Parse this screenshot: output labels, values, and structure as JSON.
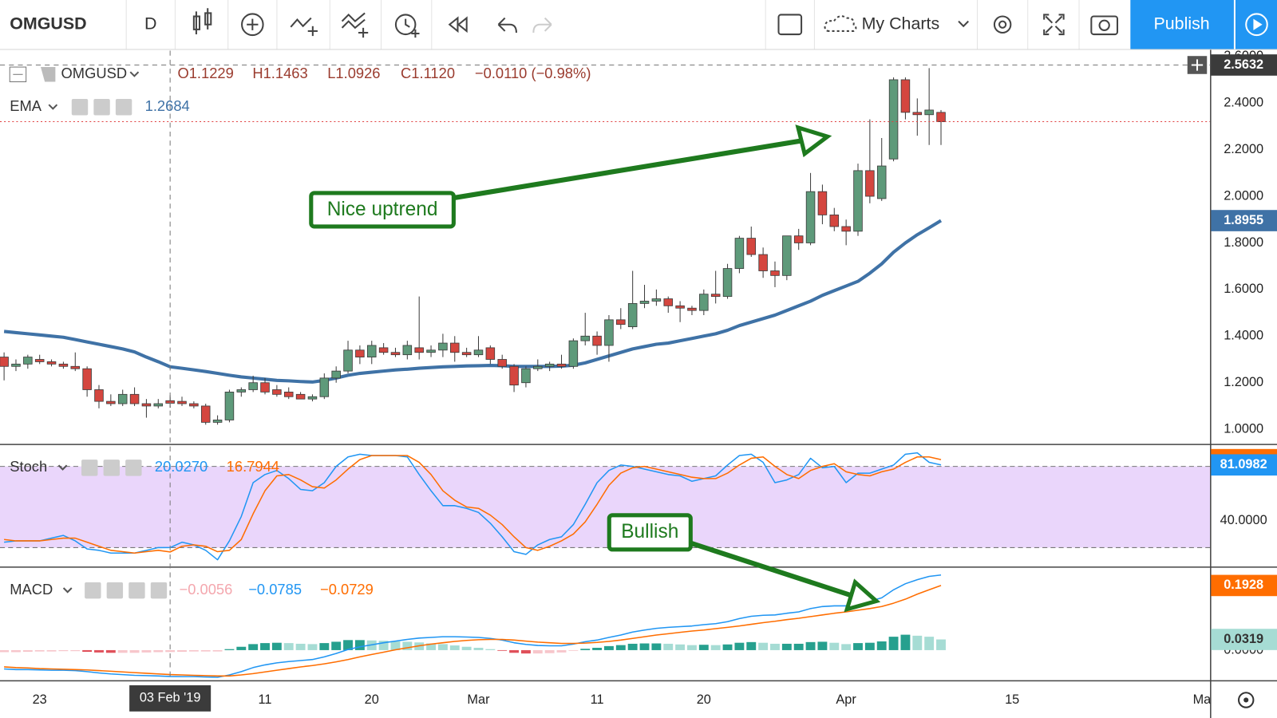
{
  "toolbar": {
    "symbol": "OMGUSD",
    "interval": "D",
    "layouts": "My Charts",
    "publish": "Publish"
  },
  "chart_data": [
    {
      "type": "candlestick",
      "symbol": "OMGUSD",
      "legend": [
        "O1.1229",
        "H1.1463",
        "L1.0926",
        "C1.1120",
        "−0.0110 (−0.98%)"
      ],
      "up_color": "#5e9a7a",
      "down_color": "#d4463f",
      "open": [
        1.31,
        1.27,
        1.28,
        1.3,
        1.29,
        1.28,
        1.27,
        1.26,
        1.17,
        1.12,
        1.11,
        1.15,
        1.11,
        1.1,
        1.1229,
        1.12,
        1.11,
        1.1,
        1.03,
        1.04,
        1.16,
        1.17,
        1.2,
        1.17,
        1.16,
        1.15,
        1.13,
        1.14,
        1.22,
        1.25,
        1.34,
        1.31,
        1.35,
        1.33,
        1.32,
        1.35,
        1.33,
        1.34,
        1.37,
        1.33,
        1.32,
        1.35,
        1.3,
        1.27,
        1.2,
        1.26,
        1.27,
        1.28,
        1.27,
        1.38,
        1.4,
        1.36,
        1.47,
        1.44,
        1.54,
        1.55,
        1.56,
        1.53,
        1.52,
        1.51,
        1.58,
        1.57,
        1.69,
        1.82,
        1.75,
        1.68,
        1.66,
        1.83,
        1.8,
        2.02,
        1.92,
        1.87,
        1.85,
        2.11,
        1.99,
        2.16,
        2.5,
        2.36,
        2.35,
        2.36
      ],
      "high": [
        1.33,
        1.3,
        1.32,
        1.32,
        1.3,
        1.29,
        1.33,
        1.27,
        1.19,
        1.15,
        1.17,
        1.18,
        1.13,
        1.13,
        1.1463,
        1.14,
        1.12,
        1.11,
        1.06,
        1.17,
        1.18,
        1.23,
        1.22,
        1.19,
        1.18,
        1.16,
        1.15,
        1.24,
        1.27,
        1.38,
        1.36,
        1.38,
        1.37,
        1.35,
        1.38,
        1.57,
        1.36,
        1.41,
        1.4,
        1.35,
        1.4,
        1.36,
        1.32,
        1.28,
        1.27,
        1.3,
        1.29,
        1.32,
        1.39,
        1.5,
        1.42,
        1.49,
        1.52,
        1.68,
        1.62,
        1.6,
        1.57,
        1.55,
        1.53,
        1.6,
        1.68,
        1.71,
        1.83,
        1.87,
        1.78,
        1.72,
        1.83,
        1.86,
        2.1,
        2.05,
        1.95,
        1.9,
        2.14,
        2.33,
        2.25,
        2.51,
        2.51,
        2.42,
        2.55,
        2.37
      ],
      "low": [
        1.21,
        1.25,
        1.26,
        1.28,
        1.27,
        1.26,
        1.25,
        1.14,
        1.09,
        1.1,
        1.1,
        1.1,
        1.05,
        1.09,
        1.0926,
        1.1,
        1.09,
        1.02,
        1.02,
        1.03,
        1.14,
        1.16,
        1.15,
        1.14,
        1.13,
        1.13,
        1.12,
        1.13,
        1.2,
        1.24,
        1.28,
        1.28,
        1.32,
        1.31,
        1.3,
        1.3,
        1.31,
        1.31,
        1.29,
        1.31,
        1.31,
        1.28,
        1.26,
        1.16,
        1.18,
        1.25,
        1.25,
        1.26,
        1.26,
        1.36,
        1.32,
        1.29,
        1.43,
        1.43,
        1.52,
        1.53,
        1.5,
        1.46,
        1.49,
        1.49,
        1.54,
        1.56,
        1.67,
        1.74,
        1.65,
        1.61,
        1.64,
        1.77,
        1.79,
        1.88,
        1.85,
        1.79,
        1.83,
        1.97,
        1.98,
        2.15,
        2.33,
        2.26,
        2.22,
        2.22
      ],
      "close": [
        1.27,
        1.28,
        1.31,
        1.29,
        1.28,
        1.27,
        1.26,
        1.17,
        1.12,
        1.11,
        1.15,
        1.11,
        1.1,
        1.11,
        1.112,
        1.11,
        1.1,
        1.03,
        1.04,
        1.16,
        1.17,
        1.2,
        1.16,
        1.15,
        1.14,
        1.13,
        1.14,
        1.22,
        1.25,
        1.34,
        1.31,
        1.36,
        1.33,
        1.32,
        1.36,
        1.33,
        1.34,
        1.37,
        1.33,
        1.32,
        1.34,
        1.3,
        1.27,
        1.19,
        1.26,
        1.27,
        1.28,
        1.27,
        1.38,
        1.4,
        1.36,
        1.47,
        1.45,
        1.54,
        1.55,
        1.56,
        1.53,
        1.52,
        1.51,
        1.58,
        1.57,
        1.69,
        1.82,
        1.75,
        1.68,
        1.66,
        1.83,
        1.8,
        2.02,
        1.92,
        1.87,
        1.85,
        2.11,
        2.0,
        2.13,
        2.5,
        2.36,
        2.35,
        2.37,
        2.32
      ],
      "series": [
        {
          "type": "line",
          "name": "EMA",
          "legend_value": "1.2684",
          "color": "#3f72a6",
          "width": 4,
          "values": [
            1.42,
            1.415,
            1.41,
            1.405,
            1.4,
            1.395,
            1.385,
            1.375,
            1.365,
            1.355,
            1.345,
            1.332,
            1.31,
            1.29,
            1.2684,
            1.262,
            1.255,
            1.248,
            1.24,
            1.232,
            1.225,
            1.22,
            1.215,
            1.21,
            1.208,
            1.205,
            1.203,
            1.21,
            1.22,
            1.232,
            1.24,
            1.245,
            1.25,
            1.255,
            1.258,
            1.262,
            1.265,
            1.268,
            1.27,
            1.272,
            1.273,
            1.274,
            1.273,
            1.27,
            1.27,
            1.27,
            1.27,
            1.271,
            1.275,
            1.285,
            1.3,
            1.315,
            1.33,
            1.345,
            1.355,
            1.365,
            1.37,
            1.38,
            1.39,
            1.4,
            1.41,
            1.425,
            1.445,
            1.46,
            1.475,
            1.49,
            1.51,
            1.53,
            1.55,
            1.575,
            1.595,
            1.615,
            1.635,
            1.67,
            1.71,
            1.76,
            1.8,
            1.835,
            1.865,
            1.8955
          ]
        }
      ],
      "ylim": [
        0.9368,
        2.6246
      ],
      "yticks": [
        {
          "value": 1,
          "label": "1.0000"
        },
        {
          "value": 1.2,
          "label": "1.2000"
        },
        {
          "value": 1.4,
          "label": "1.4000"
        },
        {
          "value": 1.6,
          "label": "1.6000"
        },
        {
          "value": 1.8,
          "label": "1.8000"
        },
        {
          "value": 2,
          "label": "2.0000"
        },
        {
          "value": 2.2,
          "label": "2.2000"
        },
        {
          "value": 2.4,
          "label": "2.4000"
        },
        {
          "value": 2.6,
          "label": "2.6000"
        }
      ],
      "crosshair_price": 2.5632,
      "annotations": [
        "Nice uptrend",
        "Bullish"
      ]
    },
    {
      "type": "line",
      "name": "Stoch",
      "bands": [
        20,
        80
      ],
      "band_color": "#ead6fb",
      "series": [
        {
          "type": "line",
          "legend_value": "20.0270",
          "color": "#2196f3",
          "width": 1.5,
          "values": [
            24,
            25,
            25,
            25,
            27,
            29,
            25,
            19,
            18,
            16,
            16,
            16,
            18,
            20,
            20.027,
            24,
            22,
            18,
            11,
            25,
            43,
            68,
            74,
            77,
            71,
            63,
            62,
            68,
            80,
            87,
            89,
            88,
            88,
            88,
            87,
            74,
            62,
            51,
            51,
            49,
            46,
            38,
            28,
            17,
            15,
            22,
            26,
            28,
            37,
            52,
            68,
            77,
            81,
            80,
            78,
            76,
            74,
            73,
            69,
            71,
            73,
            81,
            88,
            89,
            83,
            68,
            70,
            74,
            86,
            79,
            80,
            68,
            75,
            75,
            78,
            81,
            89,
            90,
            83,
            81.0982
          ]
        },
        {
          "type": "line",
          "legend_value": "16.7944",
          "color": "#ff6d00",
          "width": 1.5,
          "values": [
            26,
            25,
            25,
            25,
            26,
            27,
            27,
            24,
            21,
            18,
            17,
            16,
            17,
            18,
            16.7944,
            21,
            22,
            21,
            17,
            18,
            26,
            45,
            62,
            73,
            74,
            70,
            65,
            64,
            70,
            78,
            85,
            88,
            88,
            88,
            88,
            83,
            74,
            62,
            55,
            50,
            49,
            44,
            37,
            28,
            20,
            18,
            21,
            25,
            30,
            39,
            52,
            66,
            75,
            79,
            80,
            78,
            76,
            74,
            72,
            71,
            71,
            75,
            81,
            86,
            87,
            80,
            74,
            71,
            77,
            80,
            82,
            76,
            74,
            73,
            76,
            78,
            83,
            87,
            87,
            85
          ]
        }
      ],
      "ylim": [
        6.5,
        95.3
      ],
      "yticks": [
        {
          "value": 40,
          "label": "40.0000"
        }
      ]
    },
    {
      "type": "combo",
      "name": "MACD",
      "series": [
        {
          "type": "histogram",
          "legend_value": "−0.0056",
          "legend_color": "#f4a7ae",
          "colors": [
            "#26a08e",
            "#a6dcd4",
            "#e0505a",
            "#f7c6cb"
          ],
          "values": [
            -0.006,
            -0.006,
            -0.005,
            -0.004,
            -0.004,
            -0.003,
            -0.003,
            -0.005,
            -0.007,
            -0.008,
            -0.008,
            -0.008,
            -0.007,
            -0.006,
            -0.0056,
            -0.005,
            -0.004,
            -0.004,
            -0.004,
            0.003,
            0.01,
            0.018,
            0.021,
            0.022,
            0.021,
            0.019,
            0.018,
            0.021,
            0.025,
            0.03,
            0.03,
            0.029,
            0.028,
            0.026,
            0.025,
            0.023,
            0.02,
            0.018,
            0.014,
            0.01,
            0.007,
            0.003,
            -0.002,
            -0.008,
            -0.01,
            -0.01,
            -0.009,
            -0.007,
            -0.002,
            0.004,
            0.007,
            0.012,
            0.015,
            0.019,
            0.02,
            0.02,
            0.019,
            0.017,
            0.015,
            0.016,
            0.015,
            0.017,
            0.022,
            0.024,
            0.022,
            0.019,
            0.019,
            0.019,
            0.024,
            0.025,
            0.022,
            0.018,
            0.021,
            0.022,
            0.026,
            0.04,
            0.046,
            0.043,
            0.04,
            0.0319
          ]
        },
        {
          "type": "line",
          "legend_value": "−0.0785",
          "color": "#2196f3",
          "width": 1.5,
          "values": [
            -0.056,
            -0.058,
            -0.058,
            -0.059,
            -0.06,
            -0.06,
            -0.061,
            -0.064,
            -0.068,
            -0.071,
            -0.073,
            -0.075,
            -0.076,
            -0.077,
            -0.0785,
            -0.079,
            -0.079,
            -0.08,
            -0.081,
            -0.074,
            -0.064,
            -0.052,
            -0.044,
            -0.038,
            -0.034,
            -0.031,
            -0.028,
            -0.02,
            -0.01,
            0.002,
            0.01,
            0.016,
            0.022,
            0.027,
            0.032,
            0.036,
            0.038,
            0.04,
            0.04,
            0.039,
            0.038,
            0.035,
            0.03,
            0.022,
            0.017,
            0.014,
            0.013,
            0.013,
            0.018,
            0.025,
            0.03,
            0.038,
            0.045,
            0.054,
            0.06,
            0.065,
            0.068,
            0.07,
            0.072,
            0.076,
            0.079,
            0.085,
            0.094,
            0.101,
            0.104,
            0.105,
            0.11,
            0.114,
            0.124,
            0.13,
            0.132,
            0.132,
            0.14,
            0.146,
            0.156,
            0.18,
            0.198,
            0.21,
            0.22,
            0.224
          ]
        },
        {
          "type": "line",
          "legend_value": "−0.0729",
          "color": "#ff6d00",
          "width": 1.5,
          "values": [
            -0.05,
            -0.052,
            -0.053,
            -0.055,
            -0.056,
            -0.057,
            -0.058,
            -0.059,
            -0.061,
            -0.063,
            -0.065,
            -0.067,
            -0.069,
            -0.071,
            -0.0729,
            -0.074,
            -0.075,
            -0.076,
            -0.077,
            -0.077,
            -0.074,
            -0.07,
            -0.065,
            -0.06,
            -0.055,
            -0.05,
            -0.046,
            -0.041,
            -0.035,
            -0.028,
            -0.02,
            -0.013,
            -0.006,
            0.001,
            0.007,
            0.013,
            0.018,
            0.022,
            0.026,
            0.029,
            0.031,
            0.032,
            0.032,
            0.03,
            0.027,
            0.024,
            0.022,
            0.02,
            0.02,
            0.021,
            0.023,
            0.026,
            0.03,
            0.035,
            0.04,
            0.045,
            0.049,
            0.053,
            0.057,
            0.06,
            0.064,
            0.068,
            0.072,
            0.077,
            0.082,
            0.086,
            0.091,
            0.095,
            0.1,
            0.105,
            0.11,
            0.114,
            0.119,
            0.124,
            0.13,
            0.14,
            0.152,
            0.167,
            0.18,
            0.1928
          ]
        }
      ],
      "ylim": [
        -0.0902,
        0.2439
      ],
      "yticks": [
        {
          "value": 0,
          "label": "0.0000"
        }
      ],
      "xlim": [
        -0.344,
        101.7
      ],
      "xticks": [
        {
          "value": 3,
          "label": "23"
        },
        {
          "value": 22,
          "label": "11"
        },
        {
          "value": 31,
          "label": "20"
        },
        {
          "value": 40,
          "label": "Mar"
        },
        {
          "value": 50,
          "label": "11"
        },
        {
          "value": 59,
          "label": "20"
        },
        {
          "value": 71,
          "label": "Apr"
        },
        {
          "value": 85,
          "label": "15"
        },
        {
          "value": 101,
          "label": "Ma"
        }
      ],
      "crosshair": {
        "value": 14,
        "label": "03 Feb '19"
      },
      "grid": true
    }
  ]
}
